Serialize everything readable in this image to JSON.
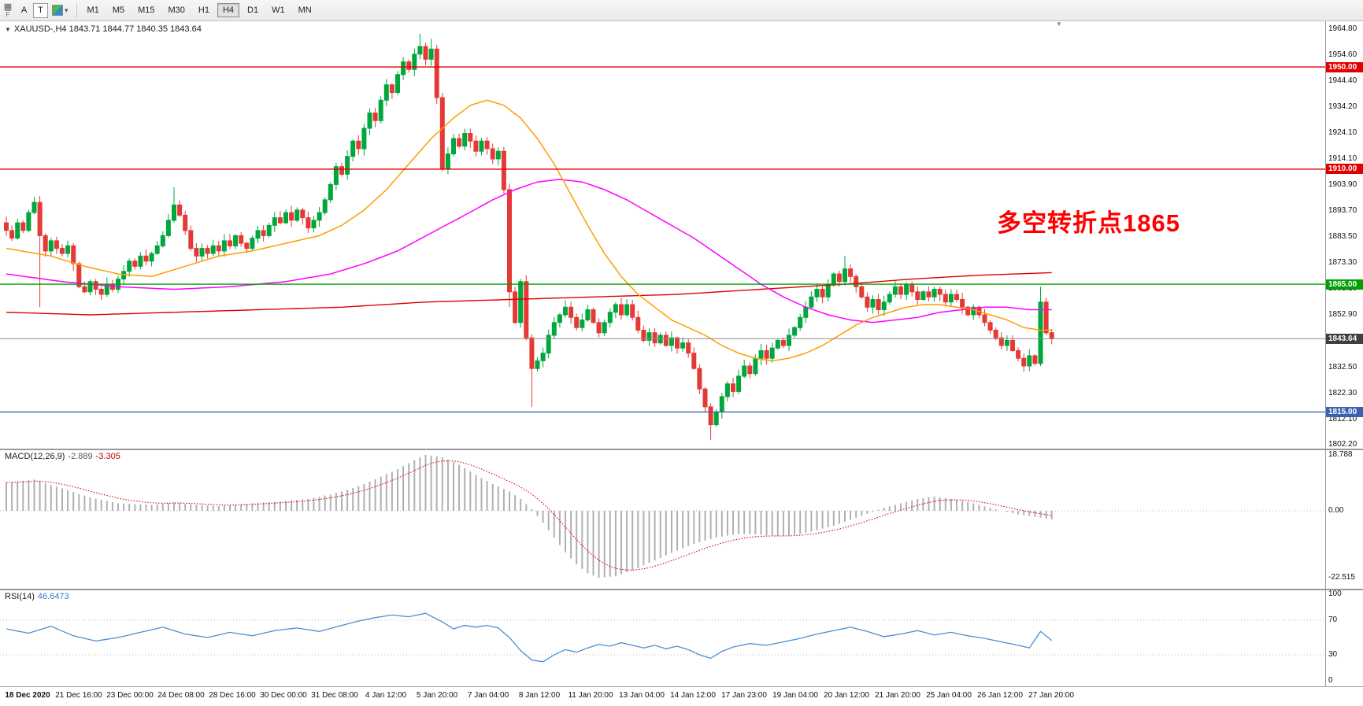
{
  "colors": {
    "up": "#00a73c",
    "down": "#e53935",
    "ma_fast": "#ff9c00",
    "ma_mid": "#ff00ff",
    "ma_slow": "#dd0000",
    "hline_red": "#e00000",
    "hline_green": "#00a000",
    "hline_blue": "#3a62b0",
    "price_line": "#8f8f8f",
    "price_tag_bg": "#3f3f3f",
    "macd_hist": "#b0b0b0",
    "macd_signal": "#e00000",
    "rsi_line": "#4a8fd3",
    "level_dotted": "#b9b9b9",
    "annotation": "#ff0000"
  },
  "icons": {
    "charts_grid": "▦",
    "dropdown_arrow": "▾",
    "legend_collapse": "▼",
    "shift_marker": "▼"
  },
  "toolbar": {
    "f_label": "F",
    "buttons": [
      {
        "label": "A"
      },
      {
        "label": "T"
      }
    ],
    "timeframes": [
      {
        "label": "M1"
      },
      {
        "label": "M5"
      },
      {
        "label": "M15"
      },
      {
        "label": "M30"
      },
      {
        "label": "H1"
      },
      {
        "label": "H4",
        "active": true
      },
      {
        "label": "D1"
      },
      {
        "label": "W1"
      },
      {
        "label": "MN"
      }
    ]
  },
  "main_chart": {
    "legend": "XAUUSD-,H4  1843.71 1844.77 1840.35 1843.64",
    "annotation": "多空转折点1865",
    "hlines": [
      {
        "label": "1950.00",
        "price": 1950.0,
        "color": "hline_red"
      },
      {
        "label": "1910.00",
        "price": 1910.0,
        "color": "hline_red"
      },
      {
        "label": "1865.00",
        "price": 1865.0,
        "color": "hline_green"
      },
      {
        "label": "1815.00",
        "price": 1815.0,
        "color": "hline_blue"
      },
      {
        "label": "1843.64",
        "price": 1843.64,
        "color": "price_line",
        "tag_bg": "price_tag_bg",
        "current": true
      }
    ]
  },
  "indicators": {
    "macd": {
      "name": "MACD(12,26,9)",
      "value_main": "-2.889",
      "value_signal": "-3.305",
      "axis": [
        {
          "v": 18.788,
          "label": "18.788"
        },
        {
          "v": 0,
          "label": "0.00"
        },
        {
          "v": -22.515,
          "label": "-22.515"
        }
      ]
    },
    "rsi": {
      "name": "RSI(14)",
      "value": "46.6473",
      "axis": [
        {
          "v": 100,
          "label": "100"
        },
        {
          "v": 70,
          "label": "70"
        },
        {
          "v": 30,
          "label": "30"
        },
        {
          "v": 0,
          "label": "0"
        }
      ],
      "levels": [
        70,
        30
      ]
    }
  },
  "chart_data": {
    "type": "candlestick",
    "symbol": "XAUUSD-",
    "timeframe": "H4",
    "ohlc_current": {
      "open": 1843.71,
      "high": 1844.77,
      "low": 1840.35,
      "close": 1843.64
    },
    "price_axis_range": [
      1802.2,
      1964.8
    ],
    "y_axis_labels": [
      "1964.80",
      "1954.60",
      "1944.40",
      "1934.20",
      "1924.10",
      "1914.10",
      "1903.90",
      "1893.70",
      "1883.50",
      "1873.30",
      "1863.10",
      "1852.90",
      "1832.50",
      "1822.30",
      "1812.10",
      "1802.20"
    ],
    "x_labels": [
      "18 Dec 2020",
      "21 Dec 16:00",
      "23 Dec 00:00",
      "24 Dec 08:00",
      "28 Dec 16:00",
      "30 Dec 00:00",
      "31 Dec 08:00",
      "4 Jan 12:00",
      "5 Jan 20:00",
      "7 Jan 04:00",
      "8 Jan 12:00",
      "11 Jan 20:00",
      "13 Jan 04:00",
      "14 Jan 12:00",
      "17 Jan 23:00",
      "19 Jan 04:00",
      "20 Jan 12:00",
      "21 Jan 20:00",
      "25 Jan 04:00",
      "26 Jan 12:00",
      "27 Jan 20:00"
    ],
    "candle_count": 188,
    "first_open": 1889,
    "closes": [
      1886,
      1883,
      1889,
      1886,
      1893,
      1897,
      1884,
      1878,
      1882,
      1879,
      1877,
      1880,
      1873,
      1864,
      1862,
      1866,
      1863,
      1861,
      1865,
      1863,
      1867,
      1870,
      1874,
      1872,
      1876,
      1874,
      1877,
      1880,
      1884,
      1890,
      1896,
      1892,
      1886,
      1879,
      1876,
      1879,
      1877,
      1880,
      1878,
      1882,
      1880,
      1884,
      1881,
      1879,
      1883,
      1886,
      1884,
      1888,
      1891,
      1889,
      1893,
      1890,
      1894,
      1891,
      1887,
      1890,
      1893,
      1898,
      1904,
      1911,
      1908,
      1915,
      1921,
      1918,
      1926,
      1932,
      1929,
      1937,
      1943,
      1940,
      1947,
      1952,
      1949,
      1955,
      1958,
      1953,
      1957,
      1938,
      1910,
      1916,
      1922,
      1919,
      1924,
      1921,
      1917,
      1921,
      1918,
      1914,
      1917,
      1902,
      1862,
      1850,
      1866,
      1844,
      1832,
      1835,
      1838,
      1845,
      1850,
      1853,
      1856,
      1852,
      1848,
      1851,
      1855,
      1850,
      1846,
      1850,
      1854,
      1857,
      1853,
      1857,
      1852,
      1847,
      1843,
      1846,
      1842,
      1845,
      1841,
      1844,
      1840,
      1842,
      1838,
      1832,
      1824,
      1817,
      1810,
      1815,
      1821,
      1826,
      1823,
      1829,
      1833,
      1830,
      1836,
      1839,
      1836,
      1840,
      1843,
      1841,
      1845,
      1848,
      1852,
      1856,
      1860,
      1863,
      1860,
      1865,
      1869,
      1866,
      1871,
      1868,
      1864,
      1860,
      1856,
      1859,
      1855,
      1858,
      1861,
      1864,
      1861,
      1865,
      1862,
      1859,
      1862,
      1860,
      1863,
      1861,
      1858,
      1861,
      1859,
      1856,
      1853,
      1856,
      1853,
      1850,
      1847,
      1844,
      1841,
      1843,
      1839,
      1836,
      1833,
      1837,
      1834,
      1858,
      1846,
      1843.64
    ],
    "wick_overrides": [
      {
        "i": 6,
        "low": 1856
      },
      {
        "i": 30,
        "high": 1903
      },
      {
        "i": 74,
        "high": 1963
      },
      {
        "i": 76,
        "high": 1961
      },
      {
        "i": 90,
        "low": 1856
      },
      {
        "i": 94,
        "low": 1817
      },
      {
        "i": 126,
        "low": 1804
      },
      {
        "i": 150,
        "high": 1876
      },
      {
        "i": 185,
        "high": 1864
      }
    ],
    "ma_fast_anchors": [
      [
        0,
        1879
      ],
      [
        8,
        1876
      ],
      [
        14,
        1872
      ],
      [
        20,
        1869
      ],
      [
        26,
        1868
      ],
      [
        32,
        1872
      ],
      [
        38,
        1876
      ],
      [
        44,
        1878
      ],
      [
        50,
        1881
      ],
      [
        56,
        1884
      ],
      [
        60,
        1888
      ],
      [
        64,
        1894
      ],
      [
        68,
        1902
      ],
      [
        72,
        1912
      ],
      [
        76,
        1922
      ],
      [
        80,
        1930
      ],
      [
        83,
        1935
      ],
      [
        86,
        1937
      ],
      [
        89,
        1935
      ],
      [
        92,
        1930
      ],
      [
        95,
        1922
      ],
      [
        98,
        1912
      ],
      [
        101,
        1900
      ],
      [
        104,
        1888
      ],
      [
        107,
        1877
      ],
      [
        110,
        1868
      ],
      [
        113,
        1861
      ],
      [
        116,
        1856
      ],
      [
        119,
        1851
      ],
      [
        122,
        1848
      ],
      [
        125,
        1845
      ],
      [
        128,
        1841
      ],
      [
        131,
        1838
      ],
      [
        134,
        1836
      ],
      [
        137,
        1835
      ],
      [
        140,
        1836
      ],
      [
        143,
        1838
      ],
      [
        146,
        1841
      ],
      [
        149,
        1845
      ],
      [
        152,
        1849
      ],
      [
        155,
        1852
      ],
      [
        158,
        1854
      ],
      [
        161,
        1856
      ],
      [
        164,
        1857
      ],
      [
        167,
        1857
      ],
      [
        170,
        1856
      ],
      [
        173,
        1855
      ],
      [
        176,
        1853
      ],
      [
        179,
        1851
      ],
      [
        182,
        1848
      ],
      [
        185,
        1847
      ],
      [
        187,
        1847
      ]
    ],
    "ma_mid_anchors": [
      [
        0,
        1869
      ],
      [
        10,
        1866
      ],
      [
        20,
        1864
      ],
      [
        30,
        1863
      ],
      [
        40,
        1864
      ],
      [
        50,
        1866
      ],
      [
        58,
        1869
      ],
      [
        64,
        1873
      ],
      [
        70,
        1878
      ],
      [
        76,
        1885
      ],
      [
        82,
        1892
      ],
      [
        87,
        1898
      ],
      [
        91,
        1902
      ],
      [
        95,
        1905
      ],
      [
        99,
        1906
      ],
      [
        103,
        1905
      ],
      [
        107,
        1902
      ],
      [
        111,
        1898
      ],
      [
        115,
        1893
      ],
      [
        119,
        1888
      ],
      [
        123,
        1883
      ],
      [
        127,
        1877
      ],
      [
        131,
        1871
      ],
      [
        135,
        1865
      ],
      [
        139,
        1860
      ],
      [
        143,
        1856
      ],
      [
        147,
        1853
      ],
      [
        151,
        1851
      ],
      [
        155,
        1850
      ],
      [
        159,
        1851
      ],
      [
        163,
        1852
      ],
      [
        167,
        1854
      ],
      [
        171,
        1855
      ],
      [
        175,
        1856
      ],
      [
        179,
        1856
      ],
      [
        183,
        1855
      ],
      [
        187,
        1855
      ]
    ],
    "ma_slow_anchors": [
      [
        0,
        1854
      ],
      [
        15,
        1853
      ],
      [
        30,
        1854
      ],
      [
        45,
        1855
      ],
      [
        60,
        1856
      ],
      [
        75,
        1858
      ],
      [
        90,
        1859
      ],
      [
        105,
        1860
      ],
      [
        120,
        1861
      ],
      [
        135,
        1863
      ],
      [
        150,
        1865
      ],
      [
        162,
        1867
      ],
      [
        174,
        1868.5
      ],
      [
        187,
        1869.5
      ]
    ],
    "macd": {
      "range": [
        -22.515,
        18.788
      ],
      "last_main": -2.889,
      "last_signal": -3.305,
      "anchors": [
        [
          0,
          9.5
        ],
        [
          5,
          10.5
        ],
        [
          10,
          7.5
        ],
        [
          15,
          4.5
        ],
        [
          20,
          2.5
        ],
        [
          26,
          2
        ],
        [
          30,
          2.8
        ],
        [
          34,
          2
        ],
        [
          38,
          1.6
        ],
        [
          42,
          2.2
        ],
        [
          46,
          2.8
        ],
        [
          50,
          3.3
        ],
        [
          54,
          4
        ],
        [
          58,
          5.5
        ],
        [
          61,
          7
        ],
        [
          64,
          9
        ],
        [
          67,
          11.5
        ],
        [
          70,
          14
        ],
        [
          73,
          17
        ],
        [
          75,
          18.8
        ],
        [
          78,
          18
        ],
        [
          81,
          15.5
        ],
        [
          84,
          12
        ],
        [
          87,
          9
        ],
        [
          90,
          6.5
        ],
        [
          92,
          4
        ],
        [
          94,
          0.5
        ],
        [
          96,
          -4
        ],
        [
          98,
          -9
        ],
        [
          100,
          -14
        ],
        [
          102,
          -18
        ],
        [
          104,
          -21
        ],
        [
          106,
          -22.5
        ],
        [
          109,
          -22
        ],
        [
          112,
          -20
        ],
        [
          115,
          -17.5
        ],
        [
          118,
          -15
        ],
        [
          121,
          -12.5
        ],
        [
          124,
          -10.5
        ],
        [
          127,
          -9
        ],
        [
          130,
          -8
        ],
        [
          133,
          -7.8
        ],
        [
          136,
          -8.2
        ],
        [
          139,
          -8.5
        ],
        [
          142,
          -7.8
        ],
        [
          145,
          -6.5
        ],
        [
          148,
          -5
        ],
        [
          151,
          -3
        ],
        [
          154,
          -1
        ],
        [
          157,
          1
        ],
        [
          160,
          2.5
        ],
        [
          163,
          4
        ],
        [
          166,
          4.8
        ],
        [
          169,
          4
        ],
        [
          172,
          3
        ],
        [
          175,
          1.5
        ],
        [
          178,
          0
        ],
        [
          181,
          -1.2
        ],
        [
          184,
          -2
        ],
        [
          187,
          -2.889
        ]
      ]
    },
    "rsi": {
      "last": 46.6473,
      "anchors": [
        [
          0,
          60
        ],
        [
          4,
          55
        ],
        [
          8,
          63
        ],
        [
          12,
          52
        ],
        [
          16,
          46
        ],
        [
          20,
          50
        ],
        [
          24,
          56
        ],
        [
          28,
          62
        ],
        [
          32,
          54
        ],
        [
          36,
          50
        ],
        [
          40,
          56
        ],
        [
          44,
          52
        ],
        [
          48,
          58
        ],
        [
          52,
          61
        ],
        [
          56,
          57
        ],
        [
          60,
          64
        ],
        [
          63,
          69
        ],
        [
          66,
          73
        ],
        [
          69,
          76
        ],
        [
          72,
          74
        ],
        [
          75,
          78
        ],
        [
          78,
          68
        ],
        [
          80,
          60
        ],
        [
          82,
          64
        ],
        [
          84,
          62
        ],
        [
          86,
          64
        ],
        [
          88,
          61
        ],
        [
          90,
          50
        ],
        [
          92,
          35
        ],
        [
          94,
          24
        ],
        [
          96,
          22
        ],
        [
          98,
          30
        ],
        [
          100,
          36
        ],
        [
          102,
          33
        ],
        [
          104,
          38
        ],
        [
          106,
          42
        ],
        [
          108,
          40
        ],
        [
          110,
          44
        ],
        [
          112,
          41
        ],
        [
          114,
          38
        ],
        [
          116,
          41
        ],
        [
          118,
          37
        ],
        [
          120,
          40
        ],
        [
          122,
          36
        ],
        [
          124,
          30
        ],
        [
          126,
          26
        ],
        [
          128,
          34
        ],
        [
          130,
          39
        ],
        [
          133,
          43
        ],
        [
          136,
          41
        ],
        [
          139,
          45
        ],
        [
          142,
          49
        ],
        [
          145,
          54
        ],
        [
          148,
          58
        ],
        [
          151,
          62
        ],
        [
          154,
          57
        ],
        [
          157,
          51
        ],
        [
          160,
          54
        ],
        [
          163,
          58
        ],
        [
          166,
          53
        ],
        [
          169,
          56
        ],
        [
          172,
          52
        ],
        [
          175,
          49
        ],
        [
          178,
          45
        ],
        [
          181,
          41
        ],
        [
          183,
          38
        ],
        [
          185,
          57
        ],
        [
          187,
          46.65
        ]
      ]
    }
  }
}
